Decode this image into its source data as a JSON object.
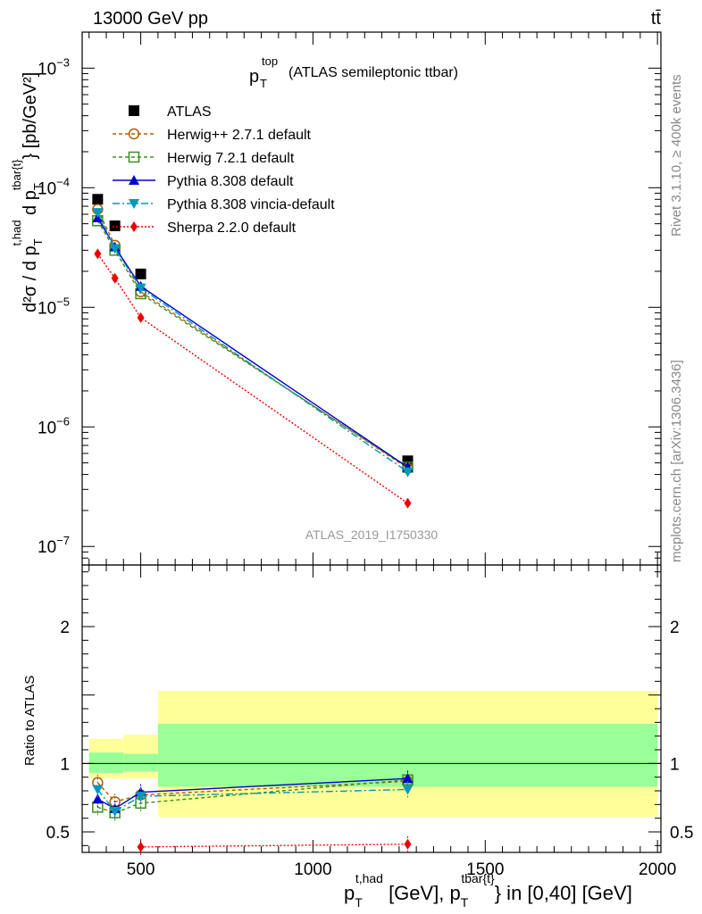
{
  "header": {
    "left": "13000 GeV pp",
    "right": "tt̄"
  },
  "plot_title": "p_T^top (ATLAS semileptonic ttbar)",
  "title_parts": {
    "p": "p",
    "sub": "T",
    "sup": "top",
    "rest": "(ATLAS semileptonic ttbar)"
  },
  "side_labels": {
    "rivet": "Rivet 3.1.10, ≥ 400k events",
    "mcplots": "mcplots.cern.ch [arXiv:1306.3436]"
  },
  "analysis_id": "ATLAS_2019_I1750330",
  "axis_labels": {
    "ylabel_main": "d²σ / d p_T^{t,had} d p_T^{tbar{t}} [pb/GeV²]",
    "ylabel_ratio": "Ratio to ATLAS",
    "xlabel": "p_T^{t,had} [GeV], p_T^{tbar{t}} in [0,40] [GeV]"
  },
  "label_parts": {
    "y_d2sigma": "d²σ / d p",
    "y_T1": "T",
    "y_thad": "t,had",
    "y_dp": " d p",
    "y_T2": "T",
    "y_tbar": "tbar{t}",
    "y_units": "} [pb/GeV²]",
    "x_p1": "p",
    "x_T1": "T",
    "x_thad": "t,had",
    "x_mid": " [GeV], p",
    "x_T2": "T",
    "x_tbar": "tbar{t}",
    "x_end": "} in [0,40] [GeV]"
  },
  "chart_data": [
    {
      "type": "line",
      "panel": "main",
      "title": "p_T^top (ATLAS semileptonic ttbar)",
      "xlim": [
        330,
        2010
      ],
      "ylim": [
        7e-08,
        0.002
      ],
      "yscale": "log",
      "grid": false,
      "legend_position": "top-left",
      "y_ticks": [
        {
          "value": 1e-07,
          "base": "10",
          "exp": "−7"
        },
        {
          "value": 1e-06,
          "base": "10",
          "exp": "−6"
        },
        {
          "value": 1e-05,
          "base": "10",
          "exp": "−5"
        },
        {
          "value": 0.0001,
          "base": "10",
          "exp": "−4"
        },
        {
          "value": 0.001,
          "base": "10",
          "exp": "−3"
        }
      ],
      "x": [
        375,
        425,
        500,
        1275
      ],
      "series": [
        {
          "name": "ATLAS",
          "color": "#000000",
          "marker": "square",
          "dash": "none",
          "values": [
            8e-05,
            4.8e-05,
            1.9e-05,
            5.2e-07
          ]
        },
        {
          "name": "Herwig++ 2.7.1 default",
          "color": "#b15f00",
          "marker": "circle-open",
          "dash": "4,3",
          "values": [
            6.6e-05,
            3.3e-05,
            1.35e-05,
            4.5e-07
          ]
        },
        {
          "name": "Herwig 7.2.1 default",
          "color": "#3b8f1f",
          "marker": "square-open",
          "dash": "4,3",
          "values": [
            5.3e-05,
            3e-05,
            1.3e-05,
            4.6e-07
          ]
        },
        {
          "name": "Pythia 8.308 default",
          "color": "#0000cc",
          "marker": "triangle-up",
          "dash": "none",
          "values": [
            5.6e-05,
            3.2e-05,
            1.5e-05,
            4.6e-07
          ]
        },
        {
          "name": "Pythia 8.308 vincia-default",
          "color": "#0099bb",
          "marker": "triangle-down",
          "dash": "8,3,2,3",
          "values": [
            6.2e-05,
            3.1e-05,
            1.45e-05,
            4.2e-07
          ]
        },
        {
          "name": "Sherpa 2.2.0 default",
          "color": "#ee0000",
          "marker": "diamond",
          "dash": "2,2",
          "values": [
            2.8e-05,
            1.75e-05,
            8.2e-06,
            2.3e-07
          ]
        }
      ]
    },
    {
      "type": "line",
      "panel": "ratio",
      "ylabel": "Ratio to ATLAS",
      "xlabel": "p_T^{t,had} [GeV], p_T^{tbar{t}} in [0,40] [GeV]",
      "xlim": [
        330,
        2010
      ],
      "ylim": [
        0.35,
        2.45
      ],
      "grid": false,
      "x_ticks": [
        500,
        1000,
        1500,
        2000
      ],
      "y_ticks": [
        0.5,
        1,
        2
      ],
      "reference_line": 1,
      "uncertainty_bands": [
        {
          "x_range": [
            350,
            450
          ],
          "stat_lo": 0.93,
          "stat_hi": 1.08,
          "total_lo": 0.89,
          "total_hi": 1.18
        },
        {
          "x_range": [
            450,
            550
          ],
          "stat_lo": 0.94,
          "stat_hi": 1.07,
          "total_lo": 0.89,
          "total_hi": 1.21
        },
        {
          "x_range": [
            550,
            2000
          ],
          "stat_lo": 0.83,
          "stat_hi": 1.29,
          "total_lo": 0.61,
          "total_hi": 1.53
        }
      ],
      "x": [
        375,
        425,
        500,
        1275
      ],
      "series": [
        {
          "name": "Herwig++ 2.7.1 default",
          "values": [
            0.86,
            0.72,
            0.77,
            0.87
          ]
        },
        {
          "name": "Herwig 7.2.1 default",
          "values": [
            0.68,
            0.64,
            0.71,
            0.88
          ]
        },
        {
          "name": "Pythia 8.308 default",
          "values": [
            0.74,
            0.67,
            0.79,
            0.89
          ]
        },
        {
          "name": "Pythia 8.308 vincia-default",
          "values": [
            0.81,
            0.65,
            0.76,
            0.81
          ]
        },
        {
          "name": "Sherpa 2.2.0 default",
          "values": [
            null,
            null,
            0.39,
            0.41
          ]
        }
      ]
    }
  ]
}
